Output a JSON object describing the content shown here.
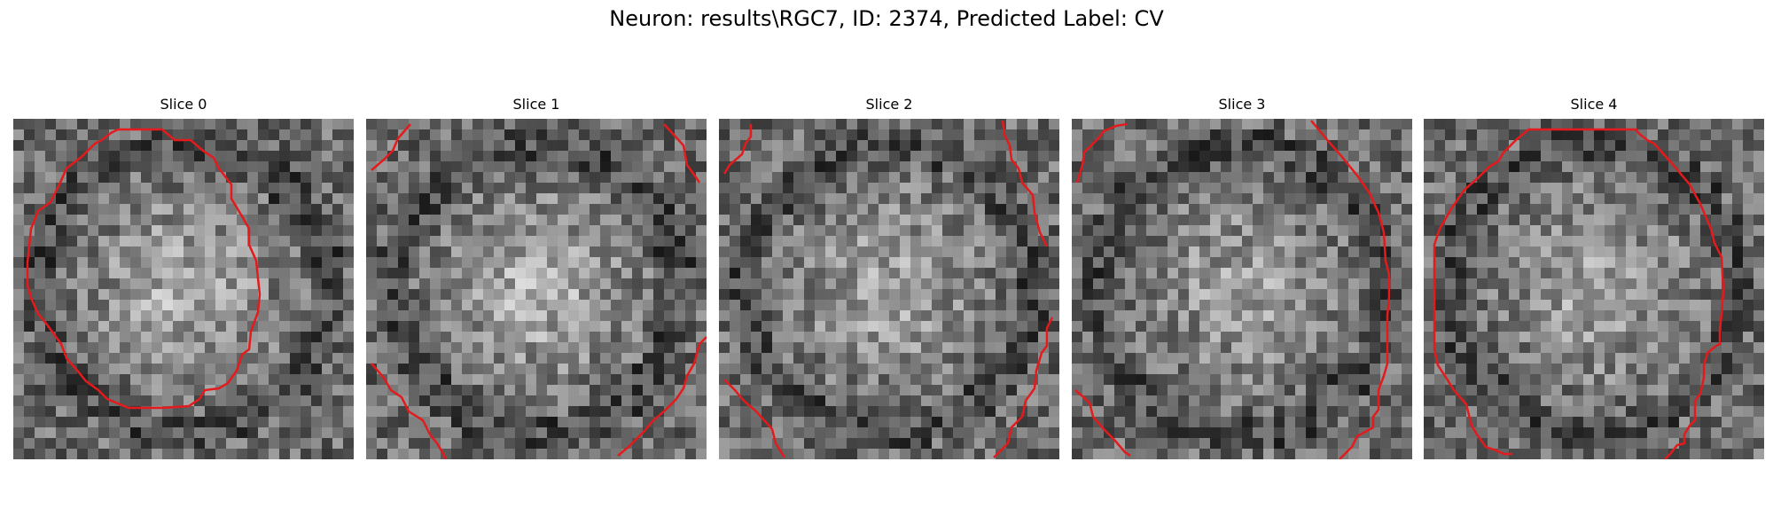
{
  "figure": {
    "title": "Neuron: results\\RGC7, ID: 2374, Predicted Label: CV"
  },
  "panels": [
    {
      "title": "Slice 0",
      "seed": 11,
      "center_bright": 1.0
    },
    {
      "title": "Slice 1",
      "seed": 23,
      "center_bright": 1.1
    },
    {
      "title": "Slice 2",
      "seed": 37,
      "center_bright": 0.9
    },
    {
      "title": "Slice 3",
      "seed": 41,
      "center_bright": 0.8
    },
    {
      "title": "Slice 4",
      "seed": 53,
      "center_bright": 0.9
    }
  ],
  "style": {
    "contour_color": "#e41a1c",
    "colormap": "gray"
  }
}
